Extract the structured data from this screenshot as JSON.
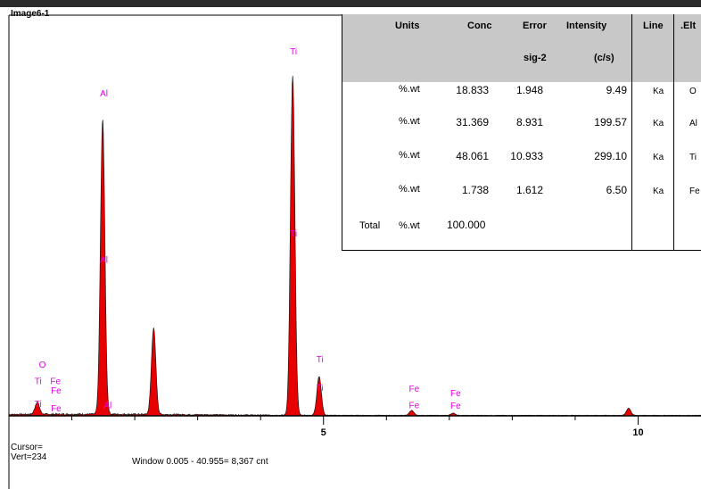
{
  "image_label": "Image6-1",
  "cursor_label": "Cursor=",
  "vert_label": "Vert=234",
  "window_info": "Window 0.005 - 40.955=   8,367 cnt",
  "table": {
    "headers": {
      "units": "Units",
      "conc": "Conc",
      "error": "Error",
      "error_sub": "sig-2",
      "intensity": "Intensity",
      "intensity_sub": "(c/s)",
      "line": "Line",
      "elt": ".Elt"
    },
    "rows": [
      {
        "label": "",
        "units": "%.wt",
        "conc": "18.833",
        "error": "1.948",
        "intensity": "9.49",
        "line": "Ka",
        "elt": "O"
      },
      {
        "label": "",
        "units": "%.wt",
        "conc": "31.369",
        "error": "8.931",
        "intensity": "199.57",
        "line": "Ka",
        "elt": "Al"
      },
      {
        "label": "",
        "units": "%.wt",
        "conc": "48.061",
        "error": "10.933",
        "intensity": "299.10",
        "line": "Ka",
        "elt": "Ti"
      },
      {
        "label": "",
        "units": "%.wt",
        "conc": "1.738",
        "error": "1.612",
        "intensity": "6.50",
        "line": "Ka",
        "elt": "Fe"
      }
    ],
    "total": {
      "label": "Total",
      "units": "%.wt",
      "conc": "100.000"
    }
  },
  "colors": {
    "spectrum": "#e60000",
    "element_label": "#e600e6",
    "header_bg": "#c8c8c8"
  },
  "chart_data": {
    "type": "area",
    "title": "",
    "xlabel": "",
    "ylabel": "",
    "x_ticks": [
      "5",
      "10"
    ],
    "xlim": [
      0,
      11
    ],
    "ylim": [
      0,
      7000
    ],
    "grid": false,
    "peaks": [
      {
        "x": 0.45,
        "y": 220
      },
      {
        "x": 1.49,
        "y": 5300
      },
      {
        "x": 2.3,
        "y": 1550
      },
      {
        "x": 4.51,
        "y": 6100
      },
      {
        "x": 4.93,
        "y": 700
      },
      {
        "x": 6.4,
        "y": 90
      },
      {
        "x": 7.06,
        "y": 40
      },
      {
        "x": 9.85,
        "y": 130
      }
    ],
    "element_markers": [
      {
        "label": "O",
        "x": 0.52,
        "y": 870
      },
      {
        "label": "Ti",
        "x": 0.45,
        "y": 570
      },
      {
        "label": "Fe",
        "x": 0.7,
        "y": 570
      },
      {
        "label": "Fe",
        "x": 0.71,
        "y": 400
      },
      {
        "label": "Ti",
        "x": 0.45,
        "y": 160
      },
      {
        "label": "Fe",
        "x": 0.71,
        "y": 80
      },
      {
        "label": "Al",
        "x": 1.49,
        "y": 5750
      },
      {
        "label": "Al",
        "x": 1.49,
        "y": 2750
      },
      {
        "label": "Al",
        "x": 1.55,
        "y": 140
      },
      {
        "label": "Ti",
        "x": 4.51,
        "y": 6500
      },
      {
        "label": "Ti",
        "x": 4.51,
        "y": 3230
      },
      {
        "label": "Ti",
        "x": 4.93,
        "y": 960
      },
      {
        "label": "Ti",
        "x": 4.93,
        "y": 450
      },
      {
        "label": "Fe",
        "x": 6.4,
        "y": 430
      },
      {
        "label": "Fe",
        "x": 6.4,
        "y": 140
      },
      {
        "label": "Fe",
        "x": 7.06,
        "y": 350
      },
      {
        "label": "Fe",
        "x": 7.06,
        "y": 130
      }
    ]
  }
}
